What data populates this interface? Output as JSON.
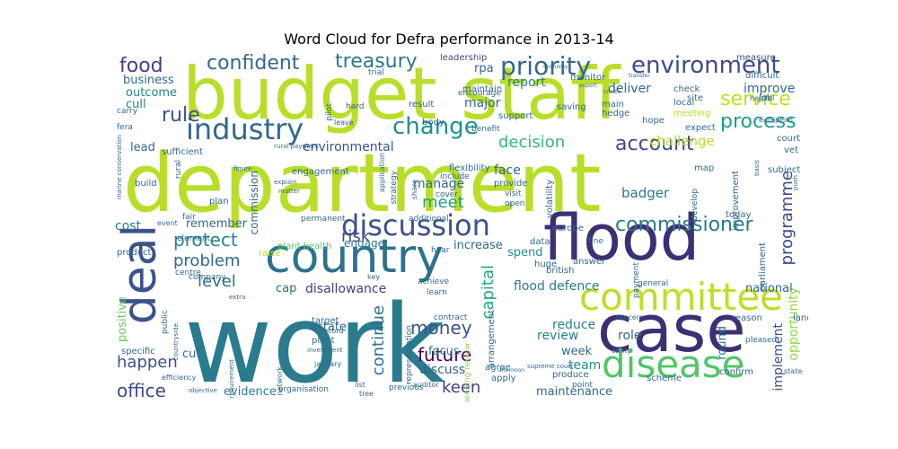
{
  "title": "Word Cloud for Defra performance in 2013-14",
  "words": [
    {
      "text": "work",
      "color": "#2a7b8e"
    },
    {
      "text": "department",
      "color": "#b8de29"
    },
    {
      "text": "budget",
      "color": "#b8de29"
    },
    {
      "text": "staff",
      "color": "#b8de29"
    },
    {
      "text": "flood",
      "color": "#3d2f73"
    },
    {
      "text": "case",
      "color": "#3d2f73"
    },
    {
      "text": "country",
      "color": "#2c728e"
    },
    {
      "text": "committee",
      "color": "#bddf26"
    },
    {
      "text": "disease",
      "color": "#52c569"
    },
    {
      "text": "deal",
      "color": "#3b528b"
    },
    {
      "text": "discussion",
      "color": "#3b528b"
    },
    {
      "text": "industry",
      "color": "#31688e"
    },
    {
      "text": "priority",
      "color": "#31688e"
    },
    {
      "text": "environment",
      "color": "#3e4a89"
    },
    {
      "text": "change",
      "color": "#21918c"
    },
    {
      "text": "confident",
      "color": "#31688e"
    },
    {
      "text": "treasury",
      "color": "#2a788e"
    },
    {
      "text": "food",
      "color": "#433e85"
    },
    {
      "text": "commissioner",
      "color": "#2a788e"
    },
    {
      "text": "process",
      "color": "#1f9e89"
    },
    {
      "text": "service",
      "color": "#bddf26"
    },
    {
      "text": "account",
      "color": "#3e4a89"
    },
    {
      "text": "rule",
      "color": "#3b528b"
    },
    {
      "text": "decision",
      "color": "#35b779"
    },
    {
      "text": "meet",
      "color": "#1f9e89"
    },
    {
      "text": "risk",
      "color": "#3e4a89"
    },
    {
      "text": "protect",
      "color": "#26828e"
    },
    {
      "text": "problem",
      "color": "#31688e"
    },
    {
      "text": "level",
      "color": "#2c728e"
    },
    {
      "text": "capital",
      "color": "#22a884"
    },
    {
      "text": "money",
      "color": "#3b528b"
    },
    {
      "text": "future",
      "color": "#440154"
    },
    {
      "text": "continue",
      "color": "#2c728e"
    },
    {
      "text": "happen",
      "color": "#3b528b"
    },
    {
      "text": "office",
      "color": "#3e4a89"
    },
    {
      "text": "keen",
      "color": "#433e85"
    },
    {
      "text": "programme",
      "color": "#3e4a89"
    },
    {
      "text": "opportunity",
      "color": "#8fd744"
    },
    {
      "text": "implement",
      "color": "#3b528b"
    },
    {
      "text": "challenge",
      "color": "#b5de2b"
    },
    {
      "text": "disallowance",
      "color": "#433e85"
    },
    {
      "text": "flood defence",
      "color": "#2a788e"
    },
    {
      "text": "report",
      "color": "#26828e"
    },
    {
      "text": "deliver",
      "color": "#31688e"
    },
    {
      "text": "improve",
      "color": "#31688e"
    },
    {
      "text": "environmental",
      "color": "#3b528b"
    },
    {
      "text": "business",
      "color": "#31688e"
    },
    {
      "text": "outcome",
      "color": "#26828e"
    },
    {
      "text": "cull",
      "color": "#26828e"
    },
    {
      "text": "lead",
      "color": "#31688e"
    },
    {
      "text": "remember",
      "color": "#31688e"
    },
    {
      "text": "badger",
      "color": "#2a788e"
    },
    {
      "text": "manage",
      "color": "#31688e"
    },
    {
      "text": "face",
      "color": "#31688e"
    },
    {
      "text": "major",
      "color": "#31688e"
    },
    {
      "text": "cost",
      "color": "#2a788e"
    },
    {
      "text": "review",
      "color": "#26828e"
    },
    {
      "text": "role",
      "color": "#31688e"
    },
    {
      "text": "week",
      "color": "#31688e"
    },
    {
      "text": "reduce",
      "color": "#26828e"
    },
    {
      "text": "team",
      "color": "#21918c"
    },
    {
      "text": "discuss",
      "color": "#31688e"
    },
    {
      "text": "focus",
      "color": "#26828e"
    },
    {
      "text": "evidence",
      "color": "#26828e"
    },
    {
      "text": "maintenance",
      "color": "#31688e"
    },
    {
      "text": "national",
      "color": "#31688e"
    },
    {
      "text": "positive",
      "color": "#6ccd5a"
    },
    {
      "text": "cut",
      "color": "#31688e"
    },
    {
      "text": "cap",
      "color": "#31688e"
    },
    {
      "text": "increase",
      "color": "#31688e"
    },
    {
      "text": "spend",
      "color": "#21918c"
    },
    {
      "text": "engage",
      "color": "#2a788e"
    },
    {
      "text": "estate",
      "color": "#31688e"
    },
    {
      "text": "round",
      "color": "#2a788e"
    },
    {
      "text": "commission",
      "color": "#31688e"
    },
    {
      "text": "rpa",
      "color": "#31688e"
    },
    {
      "text": "leadership",
      "color": "#3e4a89"
    },
    {
      "text": "measure",
      "color": "#3e4a89"
    },
    {
      "text": "engagement",
      "color": "#31688e"
    },
    {
      "text": "plant health",
      "color": "#52c569"
    },
    {
      "text": "arrangement",
      "color": "#31688e"
    },
    {
      "text": "agree",
      "color": "#31688e"
    },
    {
      "text": "apply",
      "color": "#31688e"
    },
    {
      "text": "produce",
      "color": "#31688e"
    },
    {
      "text": "target",
      "color": "#31688e"
    },
    {
      "text": "plant",
      "color": "#31688e"
    },
    {
      "text": "contract",
      "color": "#31688e"
    },
    {
      "text": "representation",
      "color": "#31688e"
    },
    {
      "text": "spending review",
      "color": "#8fd744"
    },
    {
      "text": "payment",
      "color": "#31688e"
    },
    {
      "text": "parliament",
      "color": "#31688e"
    },
    {
      "text": "confirm",
      "color": "#31688e"
    },
    {
      "text": "scheme",
      "color": "#31688e"
    },
    {
      "text": "answer",
      "color": "#31688e"
    },
    {
      "text": "british",
      "color": "#31688e"
    },
    {
      "text": "europe",
      "color": "#31688e"
    },
    {
      "text": "huge",
      "color": "#31688e"
    },
    {
      "text": "data",
      "color": "#31688e"
    },
    {
      "text": "local",
      "color": "#31688e"
    },
    {
      "text": "check",
      "color": "#31688e"
    },
    {
      "text": "difficult",
      "color": "#31688e"
    },
    {
      "text": "hope",
      "color": "#31688e"
    },
    {
      "text": "expect",
      "color": "#31688e"
    },
    {
      "text": "court",
      "color": "#31688e"
    },
    {
      "text": "vet",
      "color": "#31688e"
    },
    {
      "text": "map",
      "color": "#31688e"
    },
    {
      "text": "subject",
      "color": "#31688e"
    },
    {
      "text": "improvement",
      "color": "#31688e"
    },
    {
      "text": "today",
      "color": "#31688e"
    },
    {
      "text": "land",
      "color": "#31688e"
    },
    {
      "text": "reason",
      "color": "#31688e"
    },
    {
      "text": "pleased",
      "color": "#31688e"
    },
    {
      "text": "general",
      "color": "#31688e"
    },
    {
      "text": "fine",
      "color": "#31688e"
    },
    {
      "text": "job",
      "color": "#31688e"
    },
    {
      "text": "site",
      "color": "#31688e"
    },
    {
      "text": "meeting",
      "color": "#b5de2b"
    },
    {
      "text": "hedge",
      "color": "#31688e"
    },
    {
      "text": "main",
      "color": "#31688e"
    },
    {
      "text": "saving",
      "color": "#31688e"
    },
    {
      "text": "support",
      "color": "#31688e"
    },
    {
      "text": "result",
      "color": "#31688e"
    },
    {
      "text": "body",
      "color": "#31688e"
    },
    {
      "text": "maintain",
      "color": "#31688e"
    },
    {
      "text": "encourage",
      "color": "#31688e"
    },
    {
      "text": "monitor",
      "color": "#31688e"
    },
    {
      "text": "trial",
      "color": "#31688e"
    },
    {
      "text": "pilot",
      "color": "#31688e"
    },
    {
      "text": "hard",
      "color": "#31688e"
    },
    {
      "text": "leave",
      "color": "#31688e"
    },
    {
      "text": "fera",
      "color": "#31688e"
    },
    {
      "text": "carry",
      "color": "#31688e"
    },
    {
      "text": "sufficient",
      "color": "#31688e"
    },
    {
      "text": "rural",
      "color": "#31688e"
    },
    {
      "text": "build",
      "color": "#31688e"
    },
    {
      "text": "plan",
      "color": "#31688e"
    },
    {
      "text": "event",
      "color": "#31688e"
    },
    {
      "text": "fair",
      "color": "#31688e"
    },
    {
      "text": "element",
      "color": "#31688e"
    },
    {
      "text": "product",
      "color": "#31688e"
    },
    {
      "text": "company",
      "color": "#31688e"
    },
    {
      "text": "centre",
      "color": "#31688e"
    },
    {
      "text": "specific",
      "color": "#31688e"
    },
    {
      "text": "public",
      "color": "#31688e"
    },
    {
      "text": "raise",
      "color": "#b5de2b"
    },
    {
      "text": "permanent",
      "color": "#31688e"
    },
    {
      "text": "hear",
      "color": "#31688e"
    },
    {
      "text": "learn",
      "color": "#31688e"
    },
    {
      "text": "achieve",
      "color": "#31688e"
    },
    {
      "text": "key",
      "color": "#31688e"
    },
    {
      "text": "flexibility",
      "color": "#31688e"
    },
    {
      "text": "include",
      "color": "#31688e"
    },
    {
      "text": "cover",
      "color": "#31688e"
    },
    {
      "text": "provide",
      "color": "#31688e"
    },
    {
      "text": "visit",
      "color": "#31688e"
    },
    {
      "text": "open",
      "color": "#31688e"
    },
    {
      "text": "share",
      "color": "#31688e"
    },
    {
      "text": "strategy",
      "color": "#31688e"
    },
    {
      "text": "additional",
      "color": "#31688e"
    },
    {
      "text": "application",
      "color": "#31688e"
    },
    {
      "text": "volatility",
      "color": "#31688e"
    },
    {
      "text": "develop",
      "color": "#31688e"
    },
    {
      "text": "concern",
      "color": "#31688e"
    },
    {
      "text": "supreme court",
      "color": "#31688e"
    },
    {
      "text": "point",
      "color": "#31688e"
    },
    {
      "text": "previous",
      "color": "#31688e"
    },
    {
      "text": "auditor",
      "color": "#31688e"
    },
    {
      "text": "list",
      "color": "#31688e"
    },
    {
      "text": "tree",
      "color": "#31688e"
    },
    {
      "text": "organisation",
      "color": "#31688e"
    },
    {
      "text": "record",
      "color": "#31688e"
    },
    {
      "text": "january",
      "color": "#31688e"
    },
    {
      "text": "investment",
      "color": "#31688e"
    },
    {
      "text": "network",
      "color": "#31688e"
    },
    {
      "text": "requirement",
      "color": "#31688e"
    },
    {
      "text": "efficiency",
      "color": "#31688e"
    },
    {
      "text": "objective",
      "color": "#31688e"
    },
    {
      "text": "countryside",
      "color": "#31688e"
    },
    {
      "text": "matter",
      "color": "#31688e"
    },
    {
      "text": "explain",
      "color": "#31688e"
    },
    {
      "text": "extra",
      "color": "#31688e"
    },
    {
      "text": "figure",
      "color": "#31688e"
    },
    {
      "text": "marine conservation",
      "color": "#31688e"
    },
    {
      "text": "rural payment",
      "color": "#31688e"
    },
    {
      "text": "helpful",
      "color": "#31688e"
    },
    {
      "text": "european",
      "color": "#31688e"
    },
    {
      "text": "push",
      "color": "#31688e"
    },
    {
      "text": "basis",
      "color": "#31688e"
    },
    {
      "text": "state",
      "color": "#31688e"
    },
    {
      "text": "ability",
      "color": "#31688e"
    },
    {
      "text": "afternoon",
      "color": "#31688e"
    },
    {
      "text": "economy",
      "color": "#31688e"
    },
    {
      "text": "export",
      "color": "#31688e"
    },
    {
      "text": "transfer",
      "color": "#31688e"
    },
    {
      "text": "create",
      "color": "#31688e"
    },
    {
      "text": "benefit",
      "color": "#31688e"
    }
  ]
}
